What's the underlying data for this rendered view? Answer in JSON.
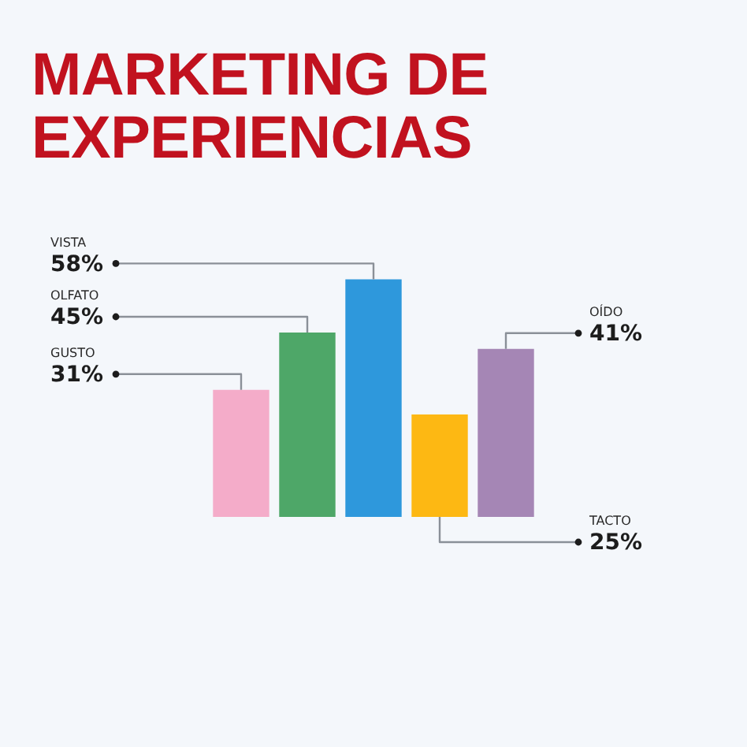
{
  "chart_data": {
    "type": "bar",
    "title": "MARKETING DE EXPERIENCIAS",
    "categories": [
      null,
      null,
      null,
      null,
      null
    ],
    "values": [
      31,
      45,
      58,
      25,
      41
    ],
    "colors": [
      "#f4acc9",
      "#4ea768",
      "#2e98dc",
      "#fdb813",
      "#a586b5"
    ],
    "value_labels": [
      "31%",
      "45%",
      "58%",
      "25%",
      "41%"
    ],
    "annotations": [
      "GUSTO",
      "OLFATO",
      "VISTA",
      "TACTO",
      "OÍDO"
    ],
    "tick_labels": false,
    "grid": false,
    "legend": false
  }
}
